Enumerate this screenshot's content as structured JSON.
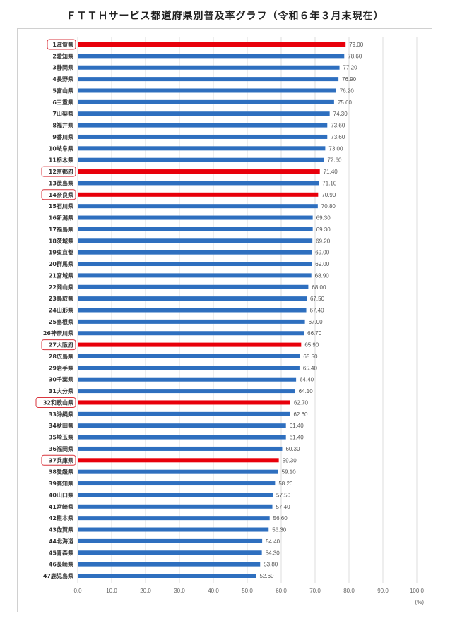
{
  "chart_data": {
    "type": "bar",
    "orientation": "horizontal",
    "title": "ＦＴＴＨサービス都道府県別普及率グラフ（令和６年３月末現在）",
    "xlabel": "(%)",
    "xlim": [
      0,
      100
    ],
    "xticks": [
      "0.0",
      "10.0",
      "20.0",
      "30.0",
      "40.0",
      "50.0",
      "60.0",
      "70.0",
      "80.0",
      "90.0",
      "100.0"
    ],
    "grid": true,
    "colors": {
      "default": "#2e6fbf",
      "highlight": "#e8000b",
      "highlight_box": "#d9363e"
    },
    "categories": [
      "1滋賀県",
      "2愛知県",
      "3静岡県",
      "4長野県",
      "5富山県",
      "6三重県",
      "7山梨県",
      "8福井県",
      "9香川県",
      "10岐阜県",
      "11栃木県",
      "12京都府",
      "13徳島県",
      "14奈良県",
      "15石川県",
      "16新潟県",
      "17福島県",
      "18茨城県",
      "19東京都",
      "20群馬県",
      "21宮城県",
      "22岡山県",
      "23鳥取県",
      "24山形県",
      "25島根県",
      "26神奈川県",
      "27大阪府",
      "28広島県",
      "29岩手県",
      "30千葉県",
      "31大分県",
      "32和歌山県",
      "33沖縄県",
      "34秋田県",
      "35埼玉県",
      "36福岡県",
      "37兵庫県",
      "38愛媛県",
      "39高知県",
      "40山口県",
      "41宮崎県",
      "42熊本県",
      "43佐賀県",
      "44北海道",
      "45青森県",
      "46長崎県",
      "47鹿児島県"
    ],
    "values": [
      79.0,
      78.6,
      77.2,
      76.9,
      76.2,
      75.6,
      74.3,
      73.6,
      73.6,
      73.0,
      72.6,
      71.4,
      71.1,
      70.9,
      70.8,
      69.3,
      69.3,
      69.2,
      69.0,
      69.0,
      68.9,
      68.0,
      67.5,
      67.4,
      67.0,
      66.7,
      65.9,
      65.5,
      65.4,
      64.4,
      64.1,
      62.7,
      62.6,
      61.4,
      61.4,
      60.3,
      59.3,
      59.1,
      58.2,
      57.5,
      57.4,
      56.6,
      56.3,
      54.4,
      54.3,
      53.8,
      52.6
    ],
    "value_labels": [
      "79.00",
      "78.60",
      "77.20",
      "76.90",
      "76.20",
      "75.60",
      "74.30",
      "73.60",
      "73.60",
      "73.00",
      "72.60",
      "71.40",
      "71.10",
      "70.90",
      "70.80",
      "69.30",
      "69.30",
      "69.20",
      "69.00",
      "69.00",
      "68.90",
      "68.00",
      "67.50",
      "67.40",
      "67.00",
      "66.70",
      "65.90",
      "65.50",
      "65.40",
      "64.40",
      "64.10",
      "62.70",
      "62.60",
      "61.40",
      "61.40",
      "60.30",
      "59.30",
      "59.10",
      "58.20",
      "57.50",
      "57.40",
      "56.60",
      "56.30",
      "54.40",
      "54.30",
      "53.80",
      "52.60"
    ],
    "highlighted": [
      "1滋賀県",
      "12京都府",
      "14奈良県",
      "27大阪府",
      "32和歌山県",
      "37兵庫県"
    ]
  }
}
